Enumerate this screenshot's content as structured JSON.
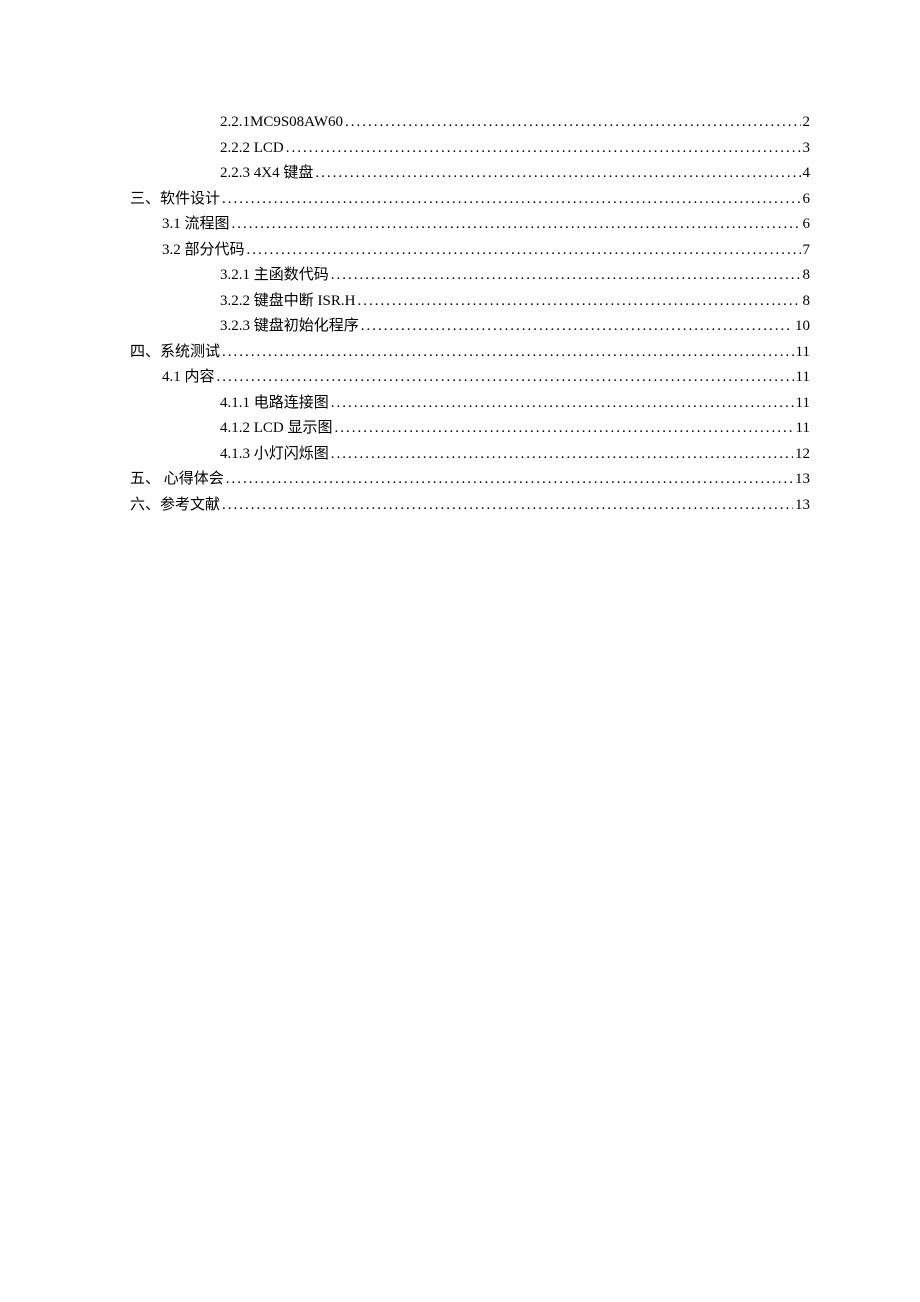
{
  "toc": {
    "text_color": "#000000",
    "font_size": 15,
    "line_height": 25.5,
    "background_color": "#ffffff",
    "entries": [
      {
        "label": "2.2.1MC9S08AW60 ",
        "page": "2",
        "indent": 2
      },
      {
        "label": "2.2.2 LCD",
        "page": "3",
        "indent": 2
      },
      {
        "label": "2.2.3 4X4 键盘",
        "page": "4",
        "indent": 2
      },
      {
        "label": "三、软件设计",
        "page": "6",
        "indent": 0
      },
      {
        "label": "3.1 流程图",
        "page": "6",
        "indent": 1
      },
      {
        "label": "3.2 部分代码",
        "page": "7",
        "indent": 1
      },
      {
        "label": "3.2.1 主函数代码",
        "page": "8",
        "indent": 2
      },
      {
        "label": "3.2.2 键盘中断 ISR.H ",
        "page": "8",
        "indent": 2
      },
      {
        "label": "3.2.3 键盘初始化程序",
        "page": "10",
        "indent": 2
      },
      {
        "label": "四、系统测试",
        "page": "11",
        "indent": 0
      },
      {
        "label": "4.1 内容",
        "page": "11",
        "indent": 1
      },
      {
        "label": "4.1.1 电路连接图",
        "page": "11",
        "indent": 2
      },
      {
        "label": "4.1.2 LCD 显示图",
        "page": "11",
        "indent": 2
      },
      {
        "label": "4.1.3 小灯闪烁图",
        "page": "12",
        "indent": 2
      },
      {
        "label": "五、  心得体会",
        "page": "13",
        "indent": 0
      },
      {
        "label": "六、参考文献",
        "page": "13",
        "indent": 0
      }
    ]
  }
}
